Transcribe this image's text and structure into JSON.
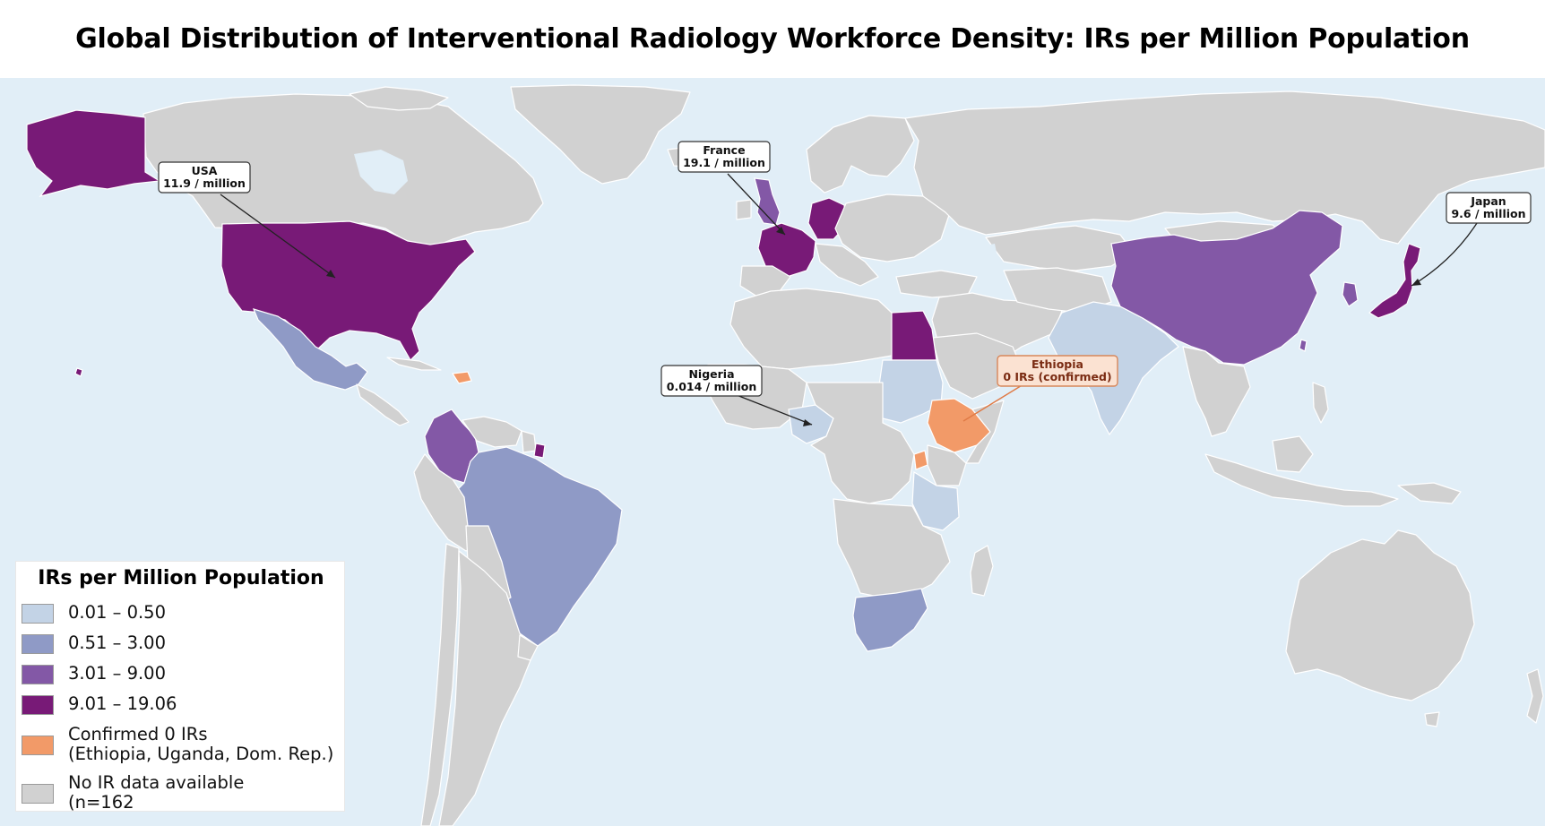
{
  "title": "Global Distribution of Interventional Radiology Workforce Density: IRs per Million Population",
  "colors": {
    "ocean": "#e1eef7",
    "no_data": "#d1d1d1",
    "bin_0_01_0_50": "#c3d3e6",
    "bin_0_51_3_00": "#8f9ac6",
    "bin_3_01_9_00": "#8358a6",
    "bin_9_01_19_06": "#781a77",
    "confirmed_zero": "#f29a68"
  },
  "legend": {
    "title": "IRs per Million Population",
    "items": [
      {
        "label": "0.01 – 0.50",
        "color": "#c3d3e6"
      },
      {
        "label": "0.51 – 3.00",
        "color": "#8f9ac6"
      },
      {
        "label": "3.01 – 9.00",
        "color": "#8358a6"
      },
      {
        "label": "9.01 – 19.06",
        "color": "#781a77"
      },
      {
        "label": "Confirmed 0 IRs\n(Ethiopia, Uganda, Dom. Rep.)",
        "color": "#f29a68"
      },
      {
        "label": "No IR data available\n(n=162",
        "color": "#d1d1d1"
      }
    ]
  },
  "annotations": {
    "usa": {
      "name": "USA",
      "value": "11.9 / million"
    },
    "france": {
      "name": "France",
      "value": "19.1 / million"
    },
    "japan": {
      "name": "Japan",
      "value": "9.6 / million"
    },
    "nigeria": {
      "name": "Nigeria",
      "value": "0.014 / million"
    },
    "ethiopia": {
      "name": "Ethiopia",
      "value": "0 IRs (confirmed)"
    }
  }
}
